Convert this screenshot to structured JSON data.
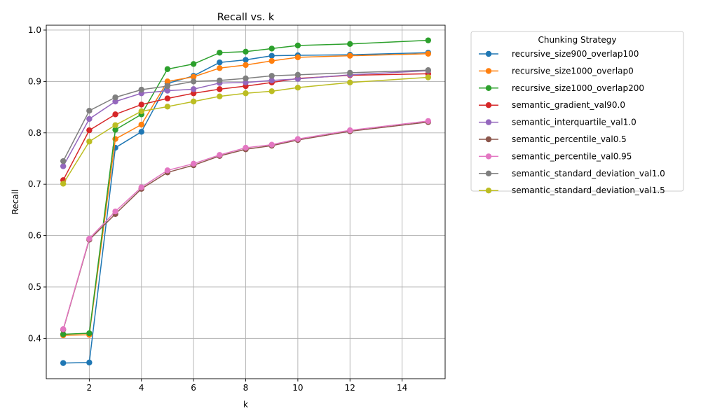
{
  "chart_data": {
    "type": "line",
    "title": "Recall vs. k",
    "xlabel": "k",
    "ylabel": "Recall",
    "xlim": [
      0.35,
      15.65
    ],
    "ylim": [
      0.3215,
      1.0095
    ],
    "xticks": [
      2,
      4,
      6,
      8,
      10,
      12,
      14
    ],
    "yticks": [
      0.4,
      0.5,
      0.6,
      0.7,
      0.8,
      0.9,
      1.0
    ],
    "ytick_labels": [
      "0.4",
      "0.5",
      "0.6",
      "0.7",
      "0.8",
      "0.9",
      "1.0"
    ],
    "grid": true,
    "legend": {
      "title": "Chunking Strategy",
      "placement": "outside-right"
    },
    "x": [
      1,
      2,
      3,
      4,
      5,
      6,
      7,
      8,
      9,
      10,
      12,
      15
    ],
    "series": [
      {
        "name": "recursive_size900_overlap100",
        "color": "#1f77b4",
        "values": [
          0.352,
          0.353,
          0.771,
          0.802,
          0.896,
          0.911,
          0.937,
          0.942,
          0.95,
          0.951,
          0.952,
          0.956
        ]
      },
      {
        "name": "recursive_size1000_overlap0",
        "color": "#ff7f0e",
        "values": [
          0.406,
          0.407,
          0.788,
          0.816,
          0.9,
          0.909,
          0.926,
          0.932,
          0.94,
          0.947,
          0.95,
          0.954
        ]
      },
      {
        "name": "recursive_size1000_overlap200",
        "color": "#2ca02c",
        "values": [
          0.408,
          0.41,
          0.806,
          0.836,
          0.924,
          0.934,
          0.956,
          0.958,
          0.964,
          0.97,
          0.973,
          0.98
        ]
      },
      {
        "name": "semantic_gradient_val90.0",
        "color": "#d62728",
        "values": [
          0.708,
          0.805,
          0.836,
          0.855,
          0.867,
          0.877,
          0.885,
          0.891,
          0.898,
          0.906,
          0.912,
          0.915
        ]
      },
      {
        "name": "semantic_interquartile_val1.0",
        "color": "#9467bd",
        "values": [
          0.735,
          0.827,
          0.861,
          0.877,
          0.882,
          0.885,
          0.897,
          0.898,
          0.902,
          0.905,
          0.913,
          0.921
        ]
      },
      {
        "name": "semantic_percentile_val0.5",
        "color": "#8c564b",
        "values": [
          0.417,
          0.592,
          0.642,
          0.691,
          0.723,
          0.737,
          0.755,
          0.768,
          0.775,
          0.786,
          0.803,
          0.821
        ]
      },
      {
        "name": "semantic_percentile_val0.95",
        "color": "#e377c2",
        "values": [
          0.418,
          0.594,
          0.647,
          0.694,
          0.727,
          0.74,
          0.757,
          0.771,
          0.777,
          0.788,
          0.805,
          0.823
        ]
      },
      {
        "name": "semantic_standard_deviation_val1.0",
        "color": "#7f7f7f",
        "values": [
          0.745,
          0.843,
          0.869,
          0.884,
          0.891,
          0.9,
          0.902,
          0.906,
          0.911,
          0.913,
          0.917,
          0.922
        ]
      },
      {
        "name": "semantic_standard_deviation_val1.5",
        "color": "#bcbd22",
        "values": [
          0.701,
          0.783,
          0.815,
          0.842,
          0.851,
          0.861,
          0.871,
          0.877,
          0.881,
          0.888,
          0.898,
          0.908
        ]
      }
    ]
  }
}
